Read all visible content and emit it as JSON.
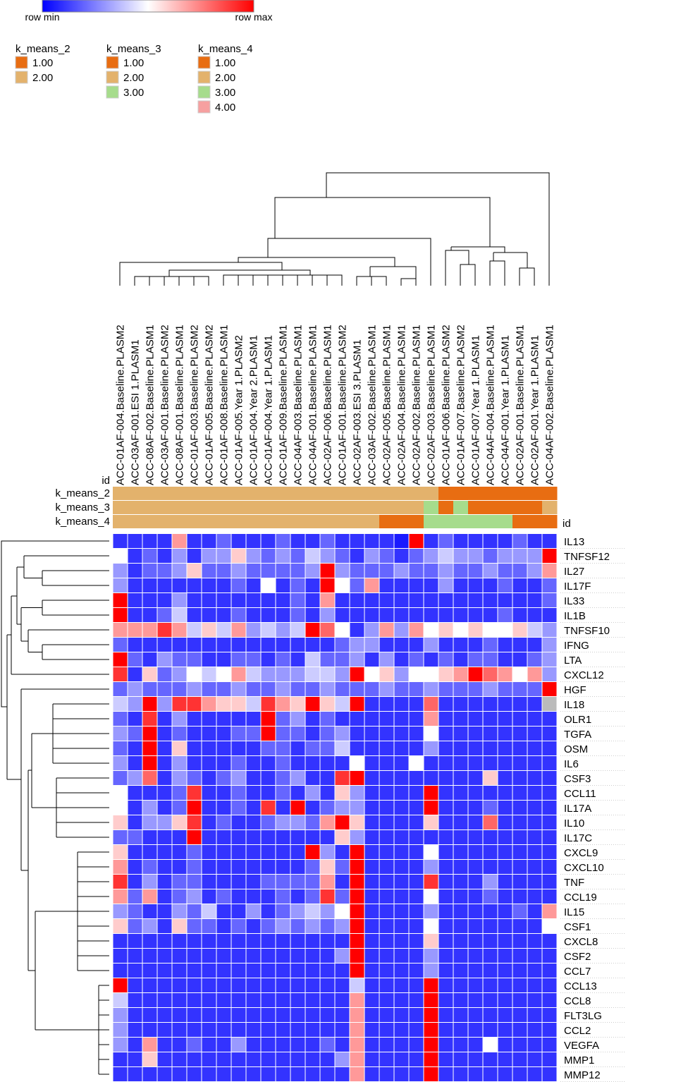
{
  "chart_data": {
    "type": "heatmap",
    "color_scale": {
      "min_label": "row min",
      "max_label": "row max",
      "colors": [
        "#0000ff",
        "#ffffff",
        "#ff0000"
      ]
    },
    "missing_color": "#bbbbbb",
    "id_label": "id",
    "columns": [
      "ACC-01AF-004.Baseline.PLASM2",
      "ACC-03AF-001.ESI 1.PLASM1",
      "ACC-08AF-002.Baseline.PLASM1",
      "ACC-03AF-001.Baseline.PLASM2",
      "ACC-08AF-001.Baseline.PLASM1",
      "ACC-01AF-003.Baseline.PLASM2",
      "ACC-01AF-005.Baseline.PLASM2",
      "ACC-01AF-008.Baseline.PLASM1",
      "ACC-01AF-005.Year 1.PLASM2",
      "ACC-01AF-004.Year 2.PLASM1",
      "ACC-01AF-004.Year 1.PLASM1",
      "ACC-01AF-009.Baseline.PLASM1",
      "ACC-04AF-003.Baseline.PLASM1",
      "ACC-04AF-001.Baseline.PLASM1",
      "ACC-02AF-006.Baseline.PLASM1",
      "ACC-01AF-001.Baseline.PLASM2",
      "ACC-02AF-003.ESI 3.PLASM1",
      "ACC-03AF-002.Baseline.PLASM1",
      "ACC-02AF-005.Baseline.PLASM1",
      "ACC-02AF-004.Baseline.PLASM1",
      "ACC-02AF-002.Baseline.PLASM1",
      "ACC-02AF-003.Baseline.PLASM1",
      "ACC-01AF-006.Baseline.PLASM2",
      "ACC-01AF-007.Baseline.PLASM2",
      "ACC-01AF-007.Year 1.PLASM1",
      "ACC-04AF-004.Baseline.PLASM1",
      "ACC-04AF-001.Year 1.PLASM1",
      "ACC-02AF-001.Baseline.PLASM1",
      "ACC-02AF-001.Year 1.PLASM1",
      "ACC-04AF-002.Baseline.PLASM1"
    ],
    "rows": [
      "IL13",
      "TNFSF12",
      "IL27",
      "IL17F",
      "IL33",
      "IL1B",
      "TNFSF10",
      "IFNG",
      "LTA",
      "CXCL12",
      "HGF",
      "IL18",
      "OLR1",
      "TGFA",
      "OSM",
      "IL6",
      "CSF3",
      "CCL11",
      "IL17A",
      "IL10",
      "IL17C",
      "CXCL9",
      "CXCL10",
      "TNF",
      "CCL19",
      "IL15",
      "CSF1",
      "CXCL8",
      "CSF2",
      "CCL7",
      "CCL13",
      "CCL8",
      "FLT3LG",
      "CCL2",
      "VEGFA",
      "MMP1",
      "MMP12"
    ],
    "values": [
      [
        0.1,
        0.1,
        0.1,
        0.1,
        0.7,
        0.1,
        0.1,
        0.2,
        0.1,
        0.1,
        0.1,
        0.2,
        0.1,
        0.1,
        0.2,
        0.1,
        0.1,
        0.1,
        0.1,
        0.05,
        1,
        0.1,
        0.2,
        0.1,
        0.1,
        0.1,
        0.1,
        0.2,
        0.1,
        0.1
      ],
      [
        0.5,
        0.1,
        0.2,
        0.1,
        0.3,
        0.1,
        0.3,
        0.3,
        0.6,
        0.3,
        0.2,
        0.3,
        0.2,
        0.4,
        0.3,
        0.2,
        0.1,
        0.3,
        0.2,
        0.1,
        0.2,
        0.3,
        0.4,
        0.3,
        0.3,
        0.2,
        0.3,
        0.3,
        0.3,
        1
      ],
      [
        0.3,
        0.1,
        0.2,
        0.2,
        0.3,
        0.6,
        0.2,
        0.2,
        0.3,
        0.2,
        0.2,
        0.2,
        0.2,
        0.3,
        1,
        0.3,
        0.2,
        0.2,
        0.2,
        0.3,
        0.2,
        0.2,
        0.3,
        0.2,
        0.2,
        0.3,
        0.2,
        0.2,
        0.3,
        0.7
      ],
      [
        0.3,
        0.1,
        0.1,
        0.1,
        0.1,
        0.1,
        0.1,
        0.1,
        0.2,
        0.1,
        0.5,
        0.1,
        0.2,
        0.1,
        1,
        0.5,
        0.2,
        0.7,
        0.1,
        0.1,
        0.1,
        0.1,
        0.3,
        0.1,
        0.1,
        0.1,
        0.2,
        0.1,
        0.1,
        0.2
      ],
      [
        1,
        0.1,
        0.1,
        0.1,
        0.3,
        0.1,
        0.1,
        0.1,
        0.1,
        0.1,
        0.1,
        0.1,
        0.2,
        0.1,
        0.7,
        0.1,
        0.1,
        0.1,
        0.1,
        0.1,
        0.1,
        0.1,
        0.1,
        0.1,
        0.1,
        0.1,
        0.1,
        0.1,
        0.1,
        0.2
      ],
      [
        1,
        0.1,
        0.1,
        0.2,
        0.4,
        0.1,
        0.1,
        0.1,
        0.2,
        0.1,
        0.1,
        0.1,
        0.2,
        0.1,
        0.3,
        0.1,
        0.1,
        0.1,
        0.1,
        0.1,
        0.1,
        0.1,
        0.1,
        0.1,
        0.1,
        0.1,
        0.2,
        0.1,
        0.1,
        0.1
      ],
      [
        0.7,
        0.7,
        0.7,
        0.9,
        0.7,
        0.4,
        0.6,
        0.4,
        0.7,
        0.3,
        0.4,
        0.3,
        0.4,
        1,
        0.8,
        0.5,
        0.1,
        0.3,
        0.7,
        0.3,
        0.7,
        0.5,
        0.6,
        0.5,
        0.6,
        0.5,
        0.5,
        0.6,
        0.4,
        0.3
      ],
      [
        0.2,
        0.1,
        0.1,
        0.1,
        0.1,
        0.1,
        0.1,
        0.1,
        0.1,
        0.1,
        0.1,
        0.1,
        0.1,
        0.1,
        0.1,
        0.2,
        0.3,
        0.3,
        0.1,
        0.1,
        0.1,
        0.3,
        0.1,
        0.1,
        0.1,
        0.2,
        0.1,
        0.1,
        0.1,
        0.3
      ],
      [
        1,
        0.2,
        0.1,
        0.3,
        0.2,
        0.2,
        0.1,
        0.1,
        0.2,
        0.2,
        0.1,
        0.2,
        0.1,
        0.4,
        0.2,
        0.2,
        0.3,
        0.1,
        0.3,
        0.1,
        0.2,
        0.1,
        0.2,
        0.1,
        0.2,
        0.2,
        0.1,
        0.1,
        0.2,
        0.3
      ],
      [
        0.9,
        0.1,
        0.6,
        0.2,
        0.3,
        0.5,
        0.4,
        0.5,
        0.7,
        0.4,
        0.3,
        0.3,
        0.3,
        0.4,
        0.4,
        0.3,
        1,
        0.5,
        0.6,
        0.3,
        0.5,
        0.5,
        0.6,
        0.7,
        1,
        0.8,
        0.7,
        0.5,
        0.7,
        0.3
      ],
      [
        0.2,
        0.3,
        0.2,
        0.2,
        0.2,
        0.3,
        0.2,
        0.2,
        0.3,
        0.2,
        0.2,
        0.3,
        0.2,
        0.2,
        0.3,
        0.2,
        0.2,
        0.2,
        0.3,
        0.2,
        0.2,
        0.3,
        0.2,
        0.2,
        0.2,
        0.3,
        0.2,
        0.2,
        0.2,
        1
      ],
      [
        0.4,
        0.3,
        1,
        0.3,
        0.9,
        0.9,
        0.7,
        0.6,
        0.6,
        0.4,
        0.9,
        0.7,
        0.6,
        1,
        0.6,
        0.4,
        1,
        0.1,
        0.1,
        0.1,
        0.1,
        0.8,
        0.1,
        0.1,
        0.1,
        0.1,
        0.1,
        0.1,
        0.1,
        null
      ],
      [
        0.2,
        0.1,
        0.9,
        0.1,
        0.3,
        0.1,
        0.1,
        0.1,
        0.1,
        0.1,
        1,
        0.2,
        0.3,
        0.1,
        0.2,
        0.1,
        0.1,
        0.1,
        0.1,
        0.1,
        0.1,
        0.7,
        0.1,
        0.1,
        0.1,
        0.1,
        0.1,
        0.1,
        0.1,
        0.1
      ],
      [
        0.3,
        0.2,
        1,
        0.1,
        0.2,
        0.1,
        0.1,
        0.1,
        0.2,
        0.2,
        1,
        0.2,
        0.2,
        0.1,
        0.2,
        0.3,
        0.1,
        0.1,
        0.1,
        0.1,
        0.1,
        0.5,
        0.1,
        0.1,
        0.1,
        0.1,
        0.1,
        0.1,
        0.1,
        0.1
      ],
      [
        0.2,
        0.1,
        1,
        0.1,
        0.6,
        0.1,
        0.1,
        0.1,
        0.1,
        0.1,
        0.2,
        0.2,
        0.1,
        0.2,
        0.2,
        0.4,
        0.1,
        0.1,
        0.1,
        0.1,
        0.1,
        0.3,
        0.1,
        0.1,
        0.1,
        0.1,
        0.1,
        0.1,
        0.1,
        0.1
      ],
      [
        0.3,
        0.1,
        1,
        0.1,
        0.3,
        0.1,
        0.1,
        0.1,
        0.2,
        0.1,
        0.1,
        0.2,
        0.1,
        0.1,
        0.1,
        0.1,
        0.5,
        0.1,
        0.1,
        0.1,
        0.5,
        0.1,
        0.1,
        0.1,
        0.1,
        0.1,
        0.1,
        0.1,
        0.1,
        0.1
      ],
      [
        0.2,
        0.3,
        0.8,
        0.1,
        0.3,
        0.2,
        0.1,
        0.2,
        0.3,
        0.1,
        0.1,
        0.2,
        0.3,
        0.1,
        0.1,
        0.9,
        1,
        0.1,
        0.1,
        0.1,
        0.1,
        0.1,
        0.1,
        0.1,
        0.1,
        0.6,
        0.1,
        0.1,
        0.1,
        0.1
      ],
      [
        0.5,
        0.1,
        0.1,
        0.1,
        0.2,
        0.9,
        0.1,
        0.1,
        0.2,
        0.1,
        0.1,
        0.2,
        0.1,
        0.3,
        0.1,
        0.6,
        0.3,
        0.1,
        0.1,
        0.1,
        0.1,
        1,
        0.1,
        0.1,
        0.1,
        0.1,
        0.1,
        0.1,
        0.1,
        0.1
      ],
      [
        0.5,
        0.1,
        0.3,
        0.1,
        0.2,
        1,
        0.1,
        0.1,
        0.2,
        0.1,
        0.9,
        0.1,
        1,
        0.1,
        0.2,
        0.3,
        0.3,
        0.1,
        0.1,
        0.1,
        0.1,
        1,
        0.1,
        0.1,
        0.1,
        0.2,
        0.1,
        0.1,
        0.1,
        0.1
      ],
      [
        0.6,
        0.1,
        0.3,
        0.3,
        0.6,
        0.9,
        0.1,
        0.2,
        0.1,
        0.1,
        0.2,
        0.3,
        0.3,
        0.2,
        0.7,
        1,
        0.6,
        0.1,
        0.1,
        0.1,
        0.1,
        0.6,
        0.1,
        0.1,
        0.1,
        0.8,
        0.1,
        0.1,
        0.1,
        0.1
      ],
      [
        0.2,
        0.2,
        0.1,
        0.1,
        0.1,
        1,
        0.1,
        0.1,
        0.1,
        0.1,
        0.1,
        0.1,
        0.1,
        0.1,
        0.1,
        0.6,
        0.3,
        0.1,
        0.1,
        0.1,
        0.1,
        0.1,
        0.1,
        0.1,
        0.1,
        0.1,
        0.1,
        0.1,
        0.1,
        0.1
      ],
      [
        0.6,
        0.1,
        0.1,
        0.1,
        0.1,
        0.2,
        0.1,
        0.1,
        0.1,
        0.1,
        0.1,
        0.1,
        0.1,
        1,
        0.3,
        0.1,
        1,
        0.1,
        0.1,
        0.1,
        0.1,
        0.5,
        0.1,
        0.1,
        0.1,
        0.1,
        0.1,
        0.1,
        0.1,
        0.1
      ],
      [
        0.7,
        0.1,
        0.2,
        0.1,
        0.1,
        0.2,
        0.1,
        0.1,
        0.1,
        0.1,
        0.1,
        0.1,
        0.1,
        0.2,
        0.6,
        0.2,
        1,
        0.1,
        0.1,
        0.1,
        0.1,
        0.3,
        0.1,
        0.1,
        0.1,
        0.1,
        0.1,
        0.1,
        0.1,
        0.1
      ],
      [
        0.9,
        0.1,
        0.3,
        0.1,
        0.2,
        0.2,
        0.1,
        0.1,
        0.1,
        0.1,
        0.2,
        0.2,
        0.2,
        0.2,
        0.7,
        0.1,
        1,
        0.1,
        0.1,
        0.1,
        0.1,
        0.9,
        0.1,
        0.1,
        0.1,
        0.3,
        0.1,
        0.1,
        0.1,
        0.1
      ],
      [
        0.7,
        0.2,
        0.7,
        0.1,
        0.2,
        0.3,
        0.1,
        0.2,
        0.1,
        0.1,
        0.1,
        0.2,
        0.1,
        0.2,
        0.9,
        0.2,
        1,
        0.1,
        0.1,
        0.1,
        0.1,
        0.5,
        0.1,
        0.1,
        0.1,
        0.2,
        0.1,
        0.1,
        0.1,
        0.1
      ],
      [
        0.3,
        0.2,
        0.1,
        0.1,
        0.3,
        0.2,
        0.4,
        0.1,
        0.1,
        0.3,
        0.1,
        0.2,
        0.3,
        0.4,
        0.3,
        0.5,
        1,
        0.1,
        0.1,
        0.1,
        0.1,
        0.3,
        0.1,
        0.1,
        0.1,
        0.1,
        0.1,
        0.2,
        0.1,
        0.7
      ],
      [
        0.6,
        0.2,
        0.3,
        0.1,
        0.6,
        0.2,
        0.2,
        0.1,
        0.2,
        0.1,
        0.2,
        0.3,
        0.2,
        0.3,
        0.2,
        0.3,
        1,
        0.1,
        0.1,
        0.1,
        0.1,
        0.5,
        0.1,
        0.1,
        0.1,
        0.1,
        0.1,
        0.1,
        0.1,
        0.5
      ],
      [
        0.1,
        0.1,
        0.1,
        0.1,
        0.1,
        0.1,
        0.1,
        0.1,
        0.1,
        0.1,
        0.1,
        0.1,
        0.1,
        0.1,
        0.1,
        0.1,
        1,
        0.1,
        0.1,
        0.1,
        0.1,
        0.6,
        0.1,
        0.1,
        0.1,
        0.1,
        0.1,
        0.1,
        0.1,
        0.1
      ],
      [
        0.1,
        0.1,
        0.1,
        0.1,
        0.1,
        0.1,
        0.1,
        0.1,
        0.1,
        0.1,
        0.1,
        0.1,
        0.1,
        0.1,
        0.1,
        0.3,
        1,
        0.1,
        0.1,
        0.1,
        0.1,
        0.3,
        0.1,
        0.1,
        0.1,
        0.1,
        0.1,
        0.1,
        0.1,
        0.1
      ],
      [
        0.1,
        0.1,
        0.1,
        0.1,
        0.1,
        0.1,
        0.1,
        0.1,
        0.1,
        0.1,
        0.1,
        0.1,
        0.1,
        0.1,
        0.1,
        0.1,
        1,
        0.1,
        0.1,
        0.1,
        0.1,
        0.3,
        0.1,
        0.1,
        0.1,
        0.1,
        0.1,
        0.1,
        0.1,
        0.1
      ],
      [
        1,
        0.1,
        0.1,
        0.1,
        0.1,
        0.1,
        0.1,
        0.1,
        0.1,
        0.1,
        0.1,
        0.1,
        0.1,
        0.1,
        0.1,
        0.1,
        0.4,
        0.1,
        0.1,
        0.1,
        0.1,
        1,
        0.1,
        0.1,
        0.1,
        0.1,
        0.1,
        0.1,
        0.1,
        0.1
      ],
      [
        0.4,
        0.1,
        0.1,
        0.1,
        0.1,
        0.1,
        0.1,
        0.1,
        0.1,
        0.1,
        0.1,
        0.1,
        0.1,
        0.1,
        0.1,
        0.1,
        0.7,
        0.1,
        0.1,
        0.1,
        0.1,
        1,
        0.1,
        0.1,
        0.1,
        0.1,
        0.1,
        0.1,
        0.1,
        0.1
      ],
      [
        0.3,
        0.1,
        0.1,
        0.1,
        0.1,
        0.1,
        0.1,
        0.1,
        0.1,
        0.1,
        0.1,
        0.1,
        0.1,
        0.1,
        0.1,
        0.1,
        0.7,
        0.1,
        0.1,
        0.1,
        0.1,
        1,
        0.1,
        0.1,
        0.1,
        0.1,
        0.1,
        0.1,
        0.1,
        0.1
      ],
      [
        0.3,
        0.1,
        0.1,
        0.1,
        0.1,
        0.1,
        0.1,
        0.1,
        0.1,
        0.1,
        0.1,
        0.1,
        0.1,
        0.1,
        0.1,
        0.1,
        0.7,
        0.1,
        0.1,
        0.1,
        0.1,
        1,
        0.1,
        0.1,
        0.1,
        0.1,
        0.1,
        0.1,
        0.1,
        0.1
      ],
      [
        0.3,
        0.1,
        0.7,
        0.1,
        0.1,
        0.2,
        0.1,
        0.1,
        0.3,
        0.1,
        0.1,
        0.1,
        0.1,
        0.1,
        0.2,
        0.1,
        0.7,
        0.1,
        0.1,
        0.1,
        0.1,
        1,
        0.1,
        0.1,
        0.1,
        0.5,
        0.1,
        0.1,
        0.1,
        0.1
      ],
      [
        0.1,
        0.1,
        0.6,
        0.1,
        0.1,
        0.1,
        0.1,
        0.1,
        0.1,
        0.1,
        0.1,
        0.1,
        0.1,
        0.1,
        0.1,
        0.3,
        0.7,
        0.1,
        0.1,
        0.1,
        0.1,
        1,
        0.1,
        0.1,
        0.1,
        0.1,
        0.1,
        0.1,
        0.1,
        0.1
      ],
      [
        0.1,
        0.1,
        0.1,
        0.1,
        0.1,
        0.1,
        0.1,
        0.1,
        0.1,
        0.1,
        0.1,
        0.1,
        0.1,
        0.1,
        0.1,
        0.1,
        0.7,
        0.1,
        0.1,
        0.1,
        0.1,
        1,
        0.1,
        0.1,
        0.1,
        0.1,
        0.1,
        0.1,
        0.1,
        0.1
      ]
    ],
    "annotations": [
      {
        "name": "k_means_2",
        "values": [
          2,
          2,
          2,
          2,
          2,
          2,
          2,
          2,
          2,
          2,
          2,
          2,
          2,
          2,
          2,
          2,
          2,
          2,
          2,
          2,
          2,
          2,
          1,
          1,
          1,
          1,
          1,
          1,
          1,
          1
        ],
        "legend": [
          {
            "value": 1,
            "label": "1.00",
            "color": "#e86d12"
          },
          {
            "value": 2,
            "label": "2.00",
            "color": "#e3b26c"
          }
        ]
      },
      {
        "name": "k_means_3",
        "values": [
          2,
          2,
          2,
          2,
          2,
          2,
          2,
          2,
          2,
          2,
          2,
          2,
          2,
          2,
          2,
          2,
          2,
          2,
          2,
          2,
          2,
          3,
          1,
          3,
          1,
          1,
          1,
          1,
          1,
          2
        ],
        "legend": [
          {
            "value": 1,
            "label": "1.00",
            "color": "#e86d12"
          },
          {
            "value": 2,
            "label": "2.00",
            "color": "#e3b26c"
          },
          {
            "value": 3,
            "label": "3.00",
            "color": "#a6dc8c"
          }
        ]
      },
      {
        "name": "k_means_4",
        "values": [
          2,
          2,
          2,
          2,
          2,
          2,
          2,
          2,
          2,
          2,
          2,
          2,
          2,
          2,
          2,
          2,
          2,
          2,
          1,
          1,
          1,
          3,
          3,
          3,
          3,
          3,
          3,
          1,
          1,
          1
        ],
        "legend": [
          {
            "value": 1,
            "label": "1.00",
            "color": "#e86d12"
          },
          {
            "value": 2,
            "label": "2.00",
            "color": "#e3b26c"
          },
          {
            "value": 3,
            "label": "3.00",
            "color": "#a6dc8c"
          },
          {
            "value": 4,
            "label": "4.00",
            "color": "#f6a0a0"
          }
        ]
      }
    ]
  }
}
